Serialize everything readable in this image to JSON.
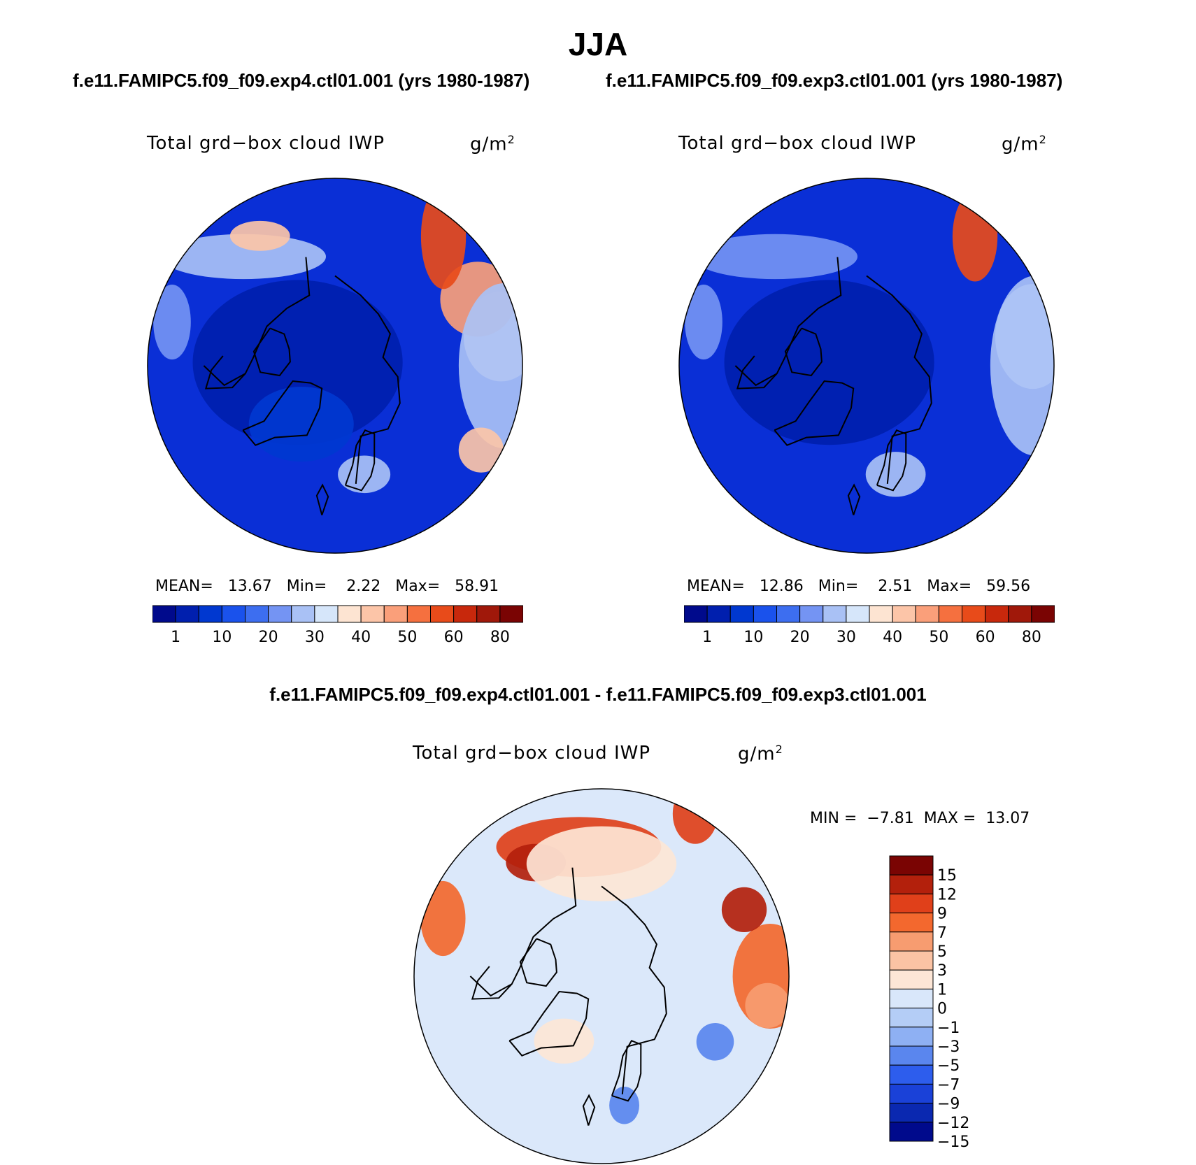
{
  "title": "JJA",
  "cases": {
    "test": "f.e11.FAMIPC5.f09_f09.exp4.ctl01.001 (yrs 1980-1987)",
    "control": "f.e11.FAMIPC5.f09_f09.exp3.ctl01.001 (yrs 1980-1987)",
    "difference": "f.e11.FAMIPC5.f09_f09.exp4.ctl01.001 - f.e11.FAMIPC5.f09_f09.exp3.ctl01.001"
  },
  "panels": [
    {
      "variable": "Total grd−box cloud IWP",
      "unit": "g/m",
      "unit_sup": "2",
      "stats": {
        "mean_label": "MEAN=",
        "mean": "13.67",
        "min_label": "Min=",
        "min": "2.22",
        "max_label": "Max=",
        "max": "58.91"
      }
    },
    {
      "variable": "Total grd−box cloud IWP",
      "unit": "g/m",
      "unit_sup": "2",
      "stats": {
        "mean_label": "MEAN=",
        "mean": "12.86",
        "min_label": "Min=",
        "min": "2.51",
        "max_label": "Max=",
        "max": "59.56"
      }
    },
    {
      "variable": "Total grd−box cloud IWP",
      "unit": "g/m",
      "unit_sup": "2",
      "stats": {
        "min_label": "MIN =",
        "min": "−7.81",
        "max_label": "MAX =",
        "max": "13.07"
      }
    }
  ],
  "chart_data": [
    {
      "type": "heatmap",
      "projection": "polar-stereographic-north",
      "title": "f.e11.FAMIPC5.f09_f09.exp4.ctl01.001 (yrs 1980-1987)",
      "variable": "Total grd-box cloud IWP",
      "units": "g/m2",
      "mean": 13.67,
      "min": 2.22,
      "max": 58.91,
      "contour_levels": [
        1,
        5,
        10,
        15,
        20,
        25,
        30,
        35,
        40,
        45,
        50,
        55,
        60,
        70,
        80
      ],
      "colorbar_tick_labels": [
        "1",
        "10",
        "20",
        "30",
        "40",
        "50",
        "60",
        "80"
      ],
      "colorbar_colors": [
        "#000a8c",
        "#001fae",
        "#0038d0",
        "#1a52ec",
        "#3d6ef0",
        "#7494f3",
        "#a9c1f5",
        "#d6e6fa",
        "#fde4d2",
        "#fcc5a8",
        "#fa9f7a",
        "#f5703f",
        "#e84b1a",
        "#c8280c",
        "#a0180a",
        "#7a0403"
      ],
      "background": "#0a2fd6",
      "blobs": [
        {
          "lon": -95,
          "lat": 80,
          "rx": 0.28,
          "ry": 0.22,
          "value": 3
        },
        {
          "lon": -30,
          "lat": 72,
          "rx": 0.14,
          "ry": 0.1,
          "value": 7
        },
        {
          "lon": -140,
          "lat": 52,
          "rx": 0.22,
          "ry": 0.06,
          "value": 27
        },
        {
          "lon": -150,
          "lat": 50,
          "rx": 0.08,
          "ry": 0.04,
          "value": 42
        },
        {
          "lon": 100,
          "lat": 45,
          "rx": 0.1,
          "ry": 0.12,
          "value": 35
        },
        {
          "lon": 115,
          "lat": 48,
          "rx": 0.1,
          "ry": 0.1,
          "value": 47
        },
        {
          "lon": 140,
          "lat": 45,
          "rx": 0.06,
          "ry": 0.14,
          "value": 58
        },
        {
          "lon": 90,
          "lat": 45,
          "rx": 0.12,
          "ry": 0.22,
          "value": 27
        },
        {
          "lon": 60,
          "lat": 45,
          "rx": 0.06,
          "ry": 0.06,
          "value": 40
        },
        {
          "lon": 15,
          "lat": 60,
          "rx": 0.07,
          "ry": 0.05,
          "value": 27
        },
        {
          "lon": -105,
          "lat": 45,
          "rx": 0.05,
          "ry": 0.1,
          "value": 22
        }
      ]
    },
    {
      "type": "heatmap",
      "projection": "polar-stereographic-north",
      "title": "f.e11.FAMIPC5.f09_f09.exp3.ctl01.001 (yrs 1980-1987)",
      "variable": "Total grd-box cloud IWP",
      "units": "g/m2",
      "mean": 12.86,
      "min": 2.51,
      "max": 59.56,
      "contour_levels": [
        1,
        5,
        10,
        15,
        20,
        25,
        30,
        35,
        40,
        45,
        50,
        55,
        60,
        70,
        80
      ],
      "colorbar_tick_labels": [
        "1",
        "10",
        "20",
        "30",
        "40",
        "50",
        "60",
        "80"
      ],
      "colorbar_colors": [
        "#000a8c",
        "#001fae",
        "#0038d0",
        "#1a52ec",
        "#3d6ef0",
        "#7494f3",
        "#a9c1f5",
        "#d6e6fa",
        "#fde4d2",
        "#fcc5a8",
        "#fa9f7a",
        "#f5703f",
        "#e84b1a",
        "#c8280c",
        "#a0180a",
        "#7a0403"
      ],
      "background": "#0a2fd6",
      "blobs": [
        {
          "lon": -95,
          "lat": 80,
          "rx": 0.28,
          "ry": 0.22,
          "value": 3
        },
        {
          "lon": -140,
          "lat": 52,
          "rx": 0.22,
          "ry": 0.06,
          "value": 22
        },
        {
          "lon": 100,
          "lat": 45,
          "rx": 0.1,
          "ry": 0.14,
          "value": 32
        },
        {
          "lon": 140,
          "lat": 45,
          "rx": 0.06,
          "ry": 0.12,
          "value": 55
        },
        {
          "lon": 90,
          "lat": 45,
          "rx": 0.12,
          "ry": 0.24,
          "value": 27
        },
        {
          "lon": 15,
          "lat": 60,
          "rx": 0.08,
          "ry": 0.06,
          "value": 25
        },
        {
          "lon": -105,
          "lat": 45,
          "rx": 0.05,
          "ry": 0.1,
          "value": 20
        }
      ]
    },
    {
      "type": "heatmap",
      "projection": "polar-stereographic-north",
      "title": "f.e11.FAMIPC5.f09_f09.exp4.ctl01.001 - f.e11.FAMIPC5.f09_f09.exp3.ctl01.001",
      "variable": "Total grd-box cloud IWP",
      "units": "g/m2",
      "min": -7.81,
      "max": 13.07,
      "contour_levels": [
        -15,
        -12,
        -9,
        -7,
        -5,
        -3,
        -1,
        0,
        1,
        3,
        5,
        7,
        9,
        12,
        15
      ],
      "colorbar_tick_labels": [
        "15",
        "12",
        "9",
        "7",
        "5",
        "3",
        "1",
        "0",
        "−1",
        "−3",
        "−5",
        "−7",
        "−9",
        "−12",
        "−15"
      ],
      "colorbar_colors": [
        "#7a0403",
        "#b3200c",
        "#e0401a",
        "#f3682e",
        "#f79c70",
        "#fbc3a4",
        "#fde6d6",
        "#d9e7fa",
        "#b4cdf6",
        "#8eb0f3",
        "#5a86ee",
        "#2d5ded",
        "#1a41d8",
        "#0a28b0",
        "#000a8c"
      ],
      "background": "#dbe8fa",
      "blobs": [
        {
          "lon": -170,
          "lat": 55,
          "rx": 0.22,
          "ry": 0.08,
          "value": 8
        },
        {
          "lon": -150,
          "lat": 55,
          "rx": 0.08,
          "ry": 0.05,
          "value": 11
        },
        {
          "lon": 90,
          "lat": 45,
          "rx": 0.1,
          "ry": 0.14,
          "value": 6
        },
        {
          "lon": 115,
          "lat": 48,
          "rx": 0.06,
          "ry": 0.06,
          "value": 10
        },
        {
          "lon": 150,
          "lat": 40,
          "rx": 0.06,
          "ry": 0.08,
          "value": 8
        },
        {
          "lon": 180,
          "lat": 60,
          "rx": 0.2,
          "ry": 0.1,
          "value": 0.5
        },
        {
          "lon": -110,
          "lat": 45,
          "rx": 0.06,
          "ry": 0.1,
          "value": 6
        },
        {
          "lon": 60,
          "lat": 55,
          "rx": 0.05,
          "ry": 0.05,
          "value": -6
        },
        {
          "lon": 10,
          "lat": 55,
          "rx": 0.04,
          "ry": 0.05,
          "value": -6
        },
        {
          "lon": -30,
          "lat": 70,
          "rx": 0.08,
          "ry": 0.06,
          "value": 0.5
        },
        {
          "lon": 80,
          "lat": 45,
          "rx": 0.06,
          "ry": 0.06,
          "value": 4
        }
      ]
    }
  ]
}
